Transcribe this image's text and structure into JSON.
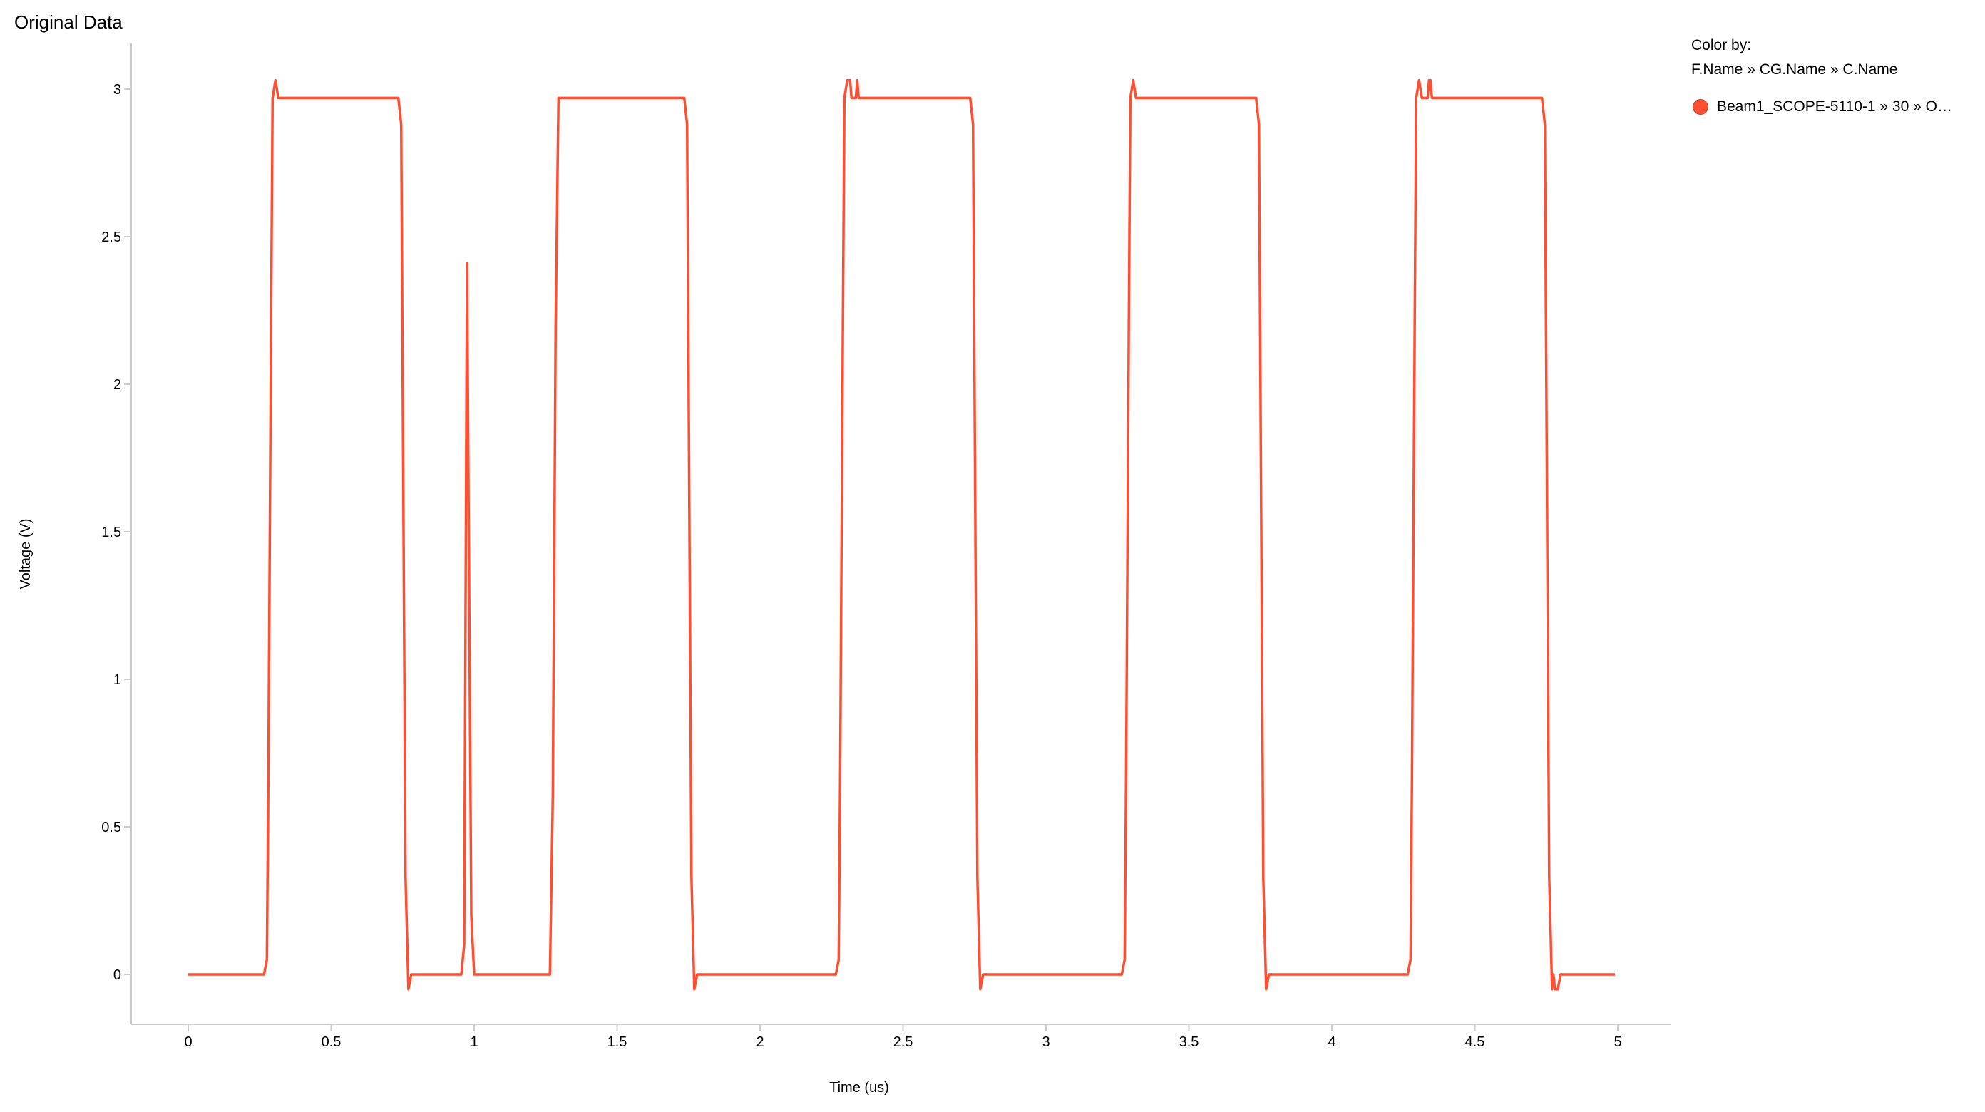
{
  "title": "Original Data",
  "legend": {
    "heading": "Color by:",
    "fields": "F.Name »  CG.Name »  C.Name",
    "items": [
      {
        "label": "Beam1_SCOPE-5110-1 » 30 » O…",
        "color": "#ff4f33"
      }
    ]
  },
  "chart_data": {
    "type": "line",
    "title": "Original Data",
    "xlabel": "Time (us)",
    "ylabel": "Voltage (V)",
    "xlim": [
      -0.2,
      5.18
    ],
    "ylim": [
      -0.17,
      3.15
    ],
    "xticks": [
      "0",
      "0.5",
      "1",
      "1.5",
      "2",
      "2.5",
      "3",
      "3.5",
      "4",
      "4.5",
      "5"
    ],
    "yticks": [
      "0",
      "0.5",
      "1",
      "1.5",
      "2",
      "2.5",
      "3"
    ],
    "grid": false,
    "legend_position": "top-right",
    "series": [
      {
        "name": "Beam1_SCOPE-5110-1 » 30 » O…",
        "color": "#ff4f33",
        "points": [
          [
            0,
            0
          ],
          [
            0.265,
            0
          ],
          [
            0.275,
            0.05
          ],
          [
            0.28,
            0.65
          ],
          [
            0.29,
            2.25
          ],
          [
            0.295,
            2.97
          ],
          [
            0.305,
            3.03
          ],
          [
            0.315,
            2.97
          ],
          [
            0.735,
            2.97
          ],
          [
            0.745,
            2.88
          ],
          [
            0.76,
            0.33
          ],
          [
            0.77,
            -0.05
          ],
          [
            0.78,
            0
          ],
          [
            0.955,
            0
          ],
          [
            0.965,
            0.1
          ],
          [
            0.975,
            2.41
          ],
          [
            0.99,
            0.2
          ],
          [
            1.0,
            0
          ],
          [
            1.265,
            0
          ],
          [
            1.275,
            0.6
          ],
          [
            1.285,
            2.2
          ],
          [
            1.295,
            2.97
          ],
          [
            1.735,
            2.97
          ],
          [
            1.745,
            2.88
          ],
          [
            1.76,
            0.33
          ],
          [
            1.77,
            -0.05
          ],
          [
            1.78,
            0
          ],
          [
            2.265,
            0
          ],
          [
            2.275,
            0.05
          ],
          [
            2.28,
            0.65
          ],
          [
            2.29,
            2.25
          ],
          [
            2.295,
            2.97
          ],
          [
            2.305,
            3.03
          ],
          [
            2.315,
            3.03
          ],
          [
            2.32,
            2.97
          ],
          [
            2.335,
            2.97
          ],
          [
            2.34,
            3.03
          ],
          [
            2.345,
            2.97
          ],
          [
            2.735,
            2.97
          ],
          [
            2.745,
            2.88
          ],
          [
            2.76,
            0.33
          ],
          [
            2.77,
            -0.05
          ],
          [
            2.78,
            0
          ],
          [
            3.265,
            0
          ],
          [
            3.275,
            0.05
          ],
          [
            3.28,
            0.65
          ],
          [
            3.29,
            2.25
          ],
          [
            3.295,
            2.97
          ],
          [
            3.305,
            3.03
          ],
          [
            3.315,
            2.97
          ],
          [
            3.735,
            2.97
          ],
          [
            3.745,
            2.88
          ],
          [
            3.76,
            0.33
          ],
          [
            3.77,
            -0.05
          ],
          [
            3.78,
            0
          ],
          [
            4.265,
            0
          ],
          [
            4.275,
            0.05
          ],
          [
            4.28,
            0.65
          ],
          [
            4.29,
            2.25
          ],
          [
            4.295,
            2.97
          ],
          [
            4.305,
            3.03
          ],
          [
            4.315,
            2.97
          ],
          [
            4.335,
            2.97
          ],
          [
            4.34,
            3.03
          ],
          [
            4.345,
            3.03
          ],
          [
            4.35,
            2.97
          ],
          [
            4.735,
            2.97
          ],
          [
            4.745,
            2.88
          ],
          [
            4.76,
            0.33
          ],
          [
            4.77,
            -0.05
          ],
          [
            4.775,
            0
          ],
          [
            4.78,
            -0.05
          ],
          [
            4.79,
            -0.05
          ],
          [
            4.8,
            0
          ],
          [
            4.99,
            0
          ]
        ]
      }
    ]
  }
}
